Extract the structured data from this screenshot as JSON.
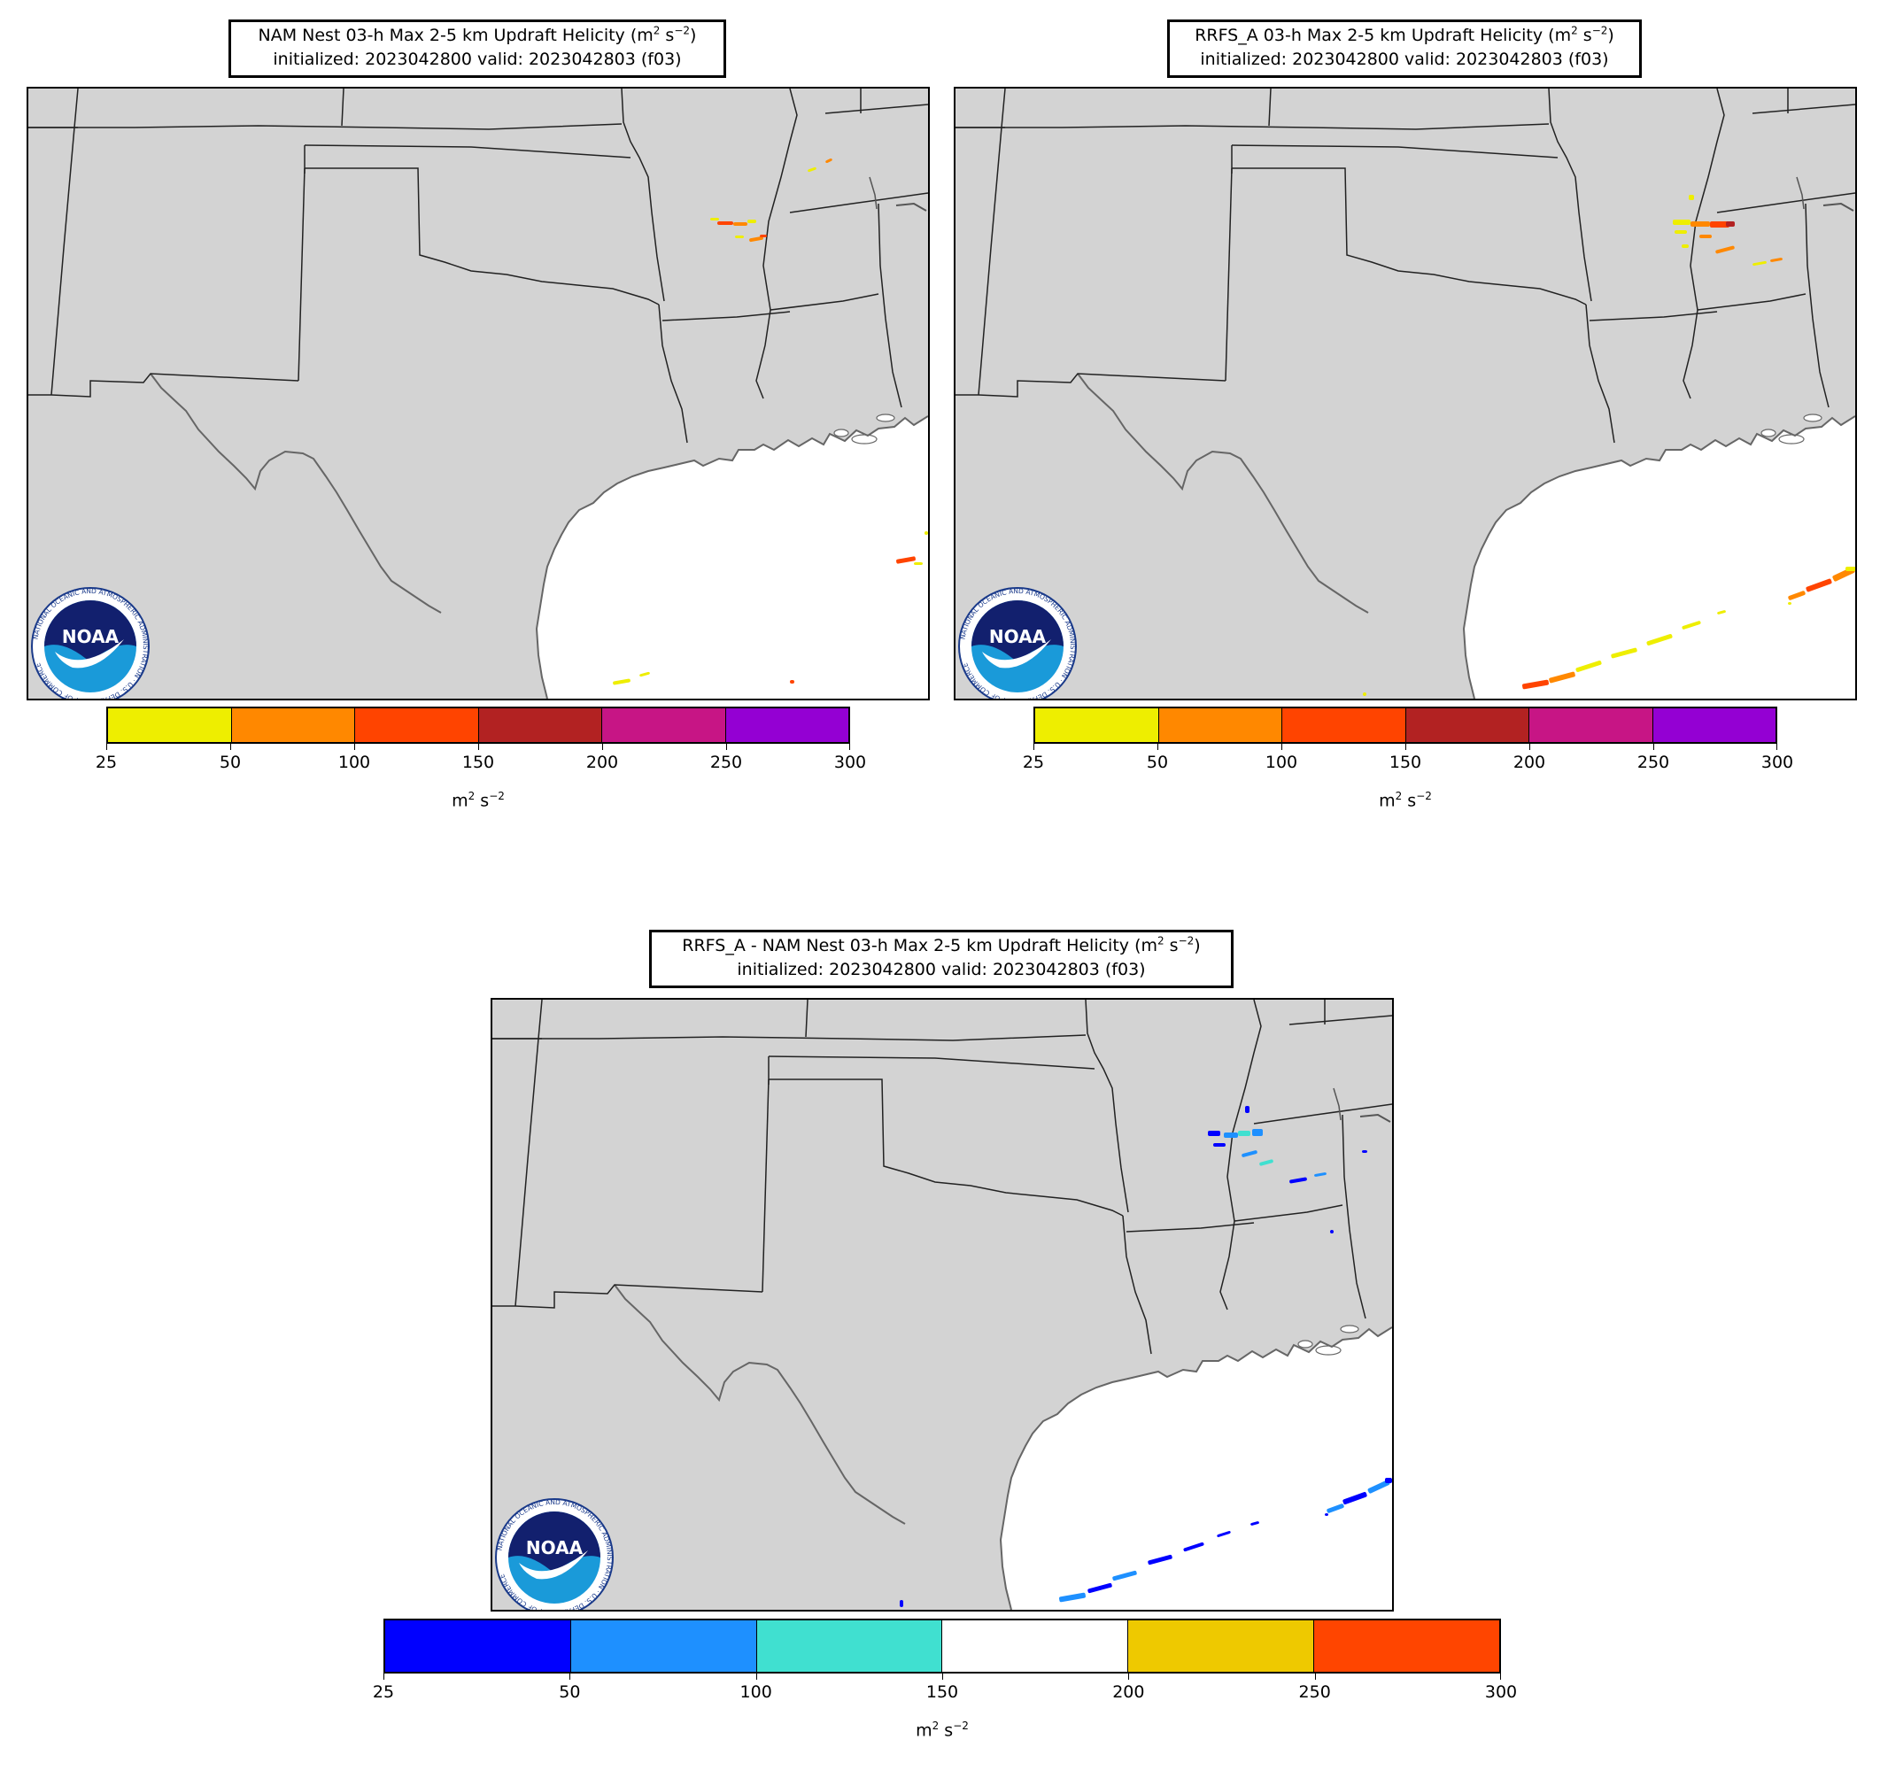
{
  "panels": [
    {
      "title_line1": "NAM Nest 03-h Max 2-5 km Updraft Helicity (m",
      "title_line2": "initialized: 2023042800 valid: 2023042803 (f03)",
      "colorbar": {
        "ticks": [
          "25",
          "50",
          "100",
          "150",
          "200",
          "250",
          "300"
        ],
        "colors": [
          "#eeee00",
          "#ff8800",
          "#ff4400",
          "#b22222",
          "#c71585",
          "#9400d3"
        ],
        "units": "m"
      }
    },
    {
      "title_line1": "RRFS_A 03-h Max 2-5 km Updraft Helicity (m",
      "title_line2": "initialized: 2023042800 valid: 2023042803 (f03)",
      "colorbar": {
        "ticks": [
          "25",
          "50",
          "100",
          "150",
          "200",
          "250",
          "300"
        ],
        "colors": [
          "#eeee00",
          "#ff8800",
          "#ff4400",
          "#b22222",
          "#c71585",
          "#9400d3"
        ],
        "units": "m"
      }
    },
    {
      "title_line1": "RRFS_A - NAM Nest 03-h Max 2-5 km Updraft Helicity (m",
      "title_line2": "initialized: 2023042800 valid: 2023042803 (f03)",
      "colorbar": {
        "ticks": [
          "25",
          "50",
          "100",
          "150",
          "200",
          "250",
          "300"
        ],
        "colors": [
          "#0000ff",
          "#1e90ff",
          "#40e0d0",
          "#ffffff",
          "#eec900",
          "#ff4500"
        ],
        "units": "m"
      }
    }
  ],
  "logo": {
    "text": "NOAA",
    "ring_text": "NATIONAL OCEANIC AND ATMOSPHERIC ADMINISTRATION · U.S. DEPARTMENT OF COMMERCE"
  },
  "colors": {
    "land": "#d3d3d3",
    "water": "#ffffff",
    "border": "#222222",
    "coast": "#666666"
  }
}
